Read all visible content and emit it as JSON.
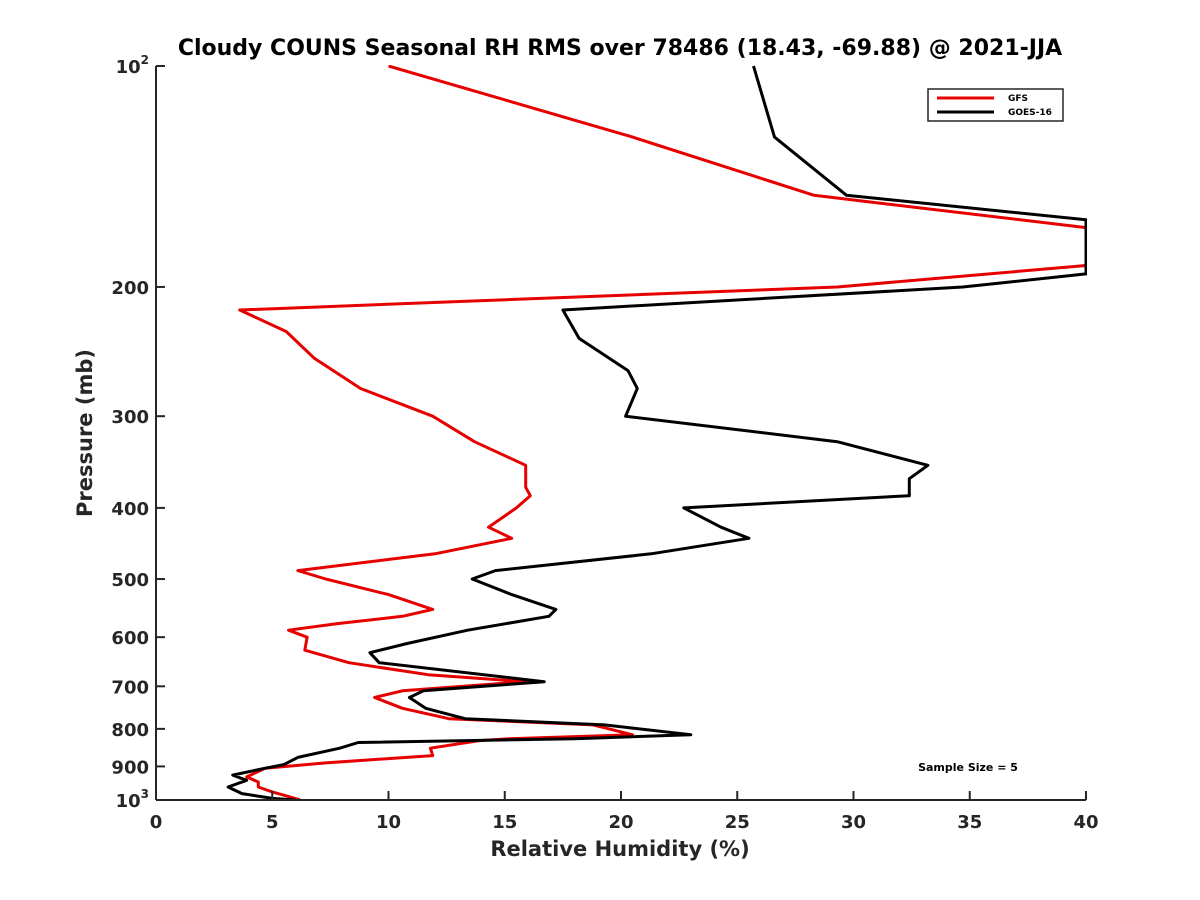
{
  "chart_data": {
    "type": "line",
    "title": "Cloudy COUNS Seasonal RH RMS over 78486 (18.43, -69.88) @ 2021-JJA",
    "xlabel": "Relative Humidity (%)",
    "ylabel": "Pressure (mb)",
    "xlim": [
      0,
      40
    ],
    "ylim": [
      100,
      1000
    ],
    "y_scale": "log",
    "y_reversed": true,
    "x_ticks": [
      0,
      5,
      10,
      15,
      20,
      25,
      30,
      35,
      40
    ],
    "x_tick_labels": [
      "0",
      "5",
      "10",
      "15",
      "20",
      "25",
      "30",
      "35",
      "40"
    ],
    "y_ticks": [
      {
        "value": 100,
        "base": "10",
        "exp": "2"
      },
      {
        "value": 200,
        "label": "200"
      },
      {
        "value": 300,
        "label": "300"
      },
      {
        "value": 400,
        "label": "400"
      },
      {
        "value": 500,
        "label": "500"
      },
      {
        "value": 600,
        "label": "600"
      },
      {
        "value": 700,
        "label": "700"
      },
      {
        "value": 800,
        "label": "800"
      },
      {
        "value": 900,
        "label": "900"
      },
      {
        "value": 1000,
        "base": "10",
        "exp": "3"
      }
    ],
    "legend": {
      "position": "top-right"
    },
    "annotation": "Sample Size = 5",
    "series": [
      {
        "name": "GFS",
        "color": "#e60000",
        "points": [
          [
            10.0,
            100
          ],
          [
            20.5,
            125
          ],
          [
            28.3,
            150
          ],
          [
            40,
            166
          ],
          [
            40,
            187
          ],
          [
            29.3,
            200
          ],
          [
            3.6,
            215
          ],
          [
            5.6,
            230
          ],
          [
            6.8,
            250
          ],
          [
            8.8,
            275
          ],
          [
            11.9,
            300
          ],
          [
            13.7,
            325
          ],
          [
            15.9,
            350
          ],
          [
            15.9,
            375
          ],
          [
            16.1,
            385
          ],
          [
            15.5,
            400
          ],
          [
            14.3,
            425
          ],
          [
            15.3,
            440
          ],
          [
            12.0,
            462
          ],
          [
            6.1,
            487
          ],
          [
            7.3,
            500
          ],
          [
            10.0,
            525
          ],
          [
            11.9,
            550
          ],
          [
            10.6,
            562
          ],
          [
            7.8,
            575
          ],
          [
            5.7,
            587
          ],
          [
            6.5,
            600
          ],
          [
            6.4,
            625
          ],
          [
            8.3,
            650
          ],
          [
            11.7,
            675
          ],
          [
            15.9,
            690
          ],
          [
            10.6,
            710
          ],
          [
            9.4,
            725
          ],
          [
            10.6,
            750
          ],
          [
            12.6,
            775
          ],
          [
            18.8,
            790
          ],
          [
            20.5,
            815
          ],
          [
            15.2,
            825
          ],
          [
            13.9,
            830
          ],
          [
            11.8,
            850
          ],
          [
            11.9,
            870
          ],
          [
            7.3,
            890
          ],
          [
            4.7,
            905
          ],
          [
            3.9,
            930
          ],
          [
            4.4,
            945
          ],
          [
            4.4,
            960
          ],
          [
            5.0,
            975
          ],
          [
            5.5,
            985
          ],
          [
            6.2,
            1000
          ]
        ]
      },
      {
        "name": "GOES-16",
        "color": "#000000",
        "points": [
          [
            25.7,
            100
          ],
          [
            26.6,
            125
          ],
          [
            29.7,
            150
          ],
          [
            40,
            162
          ],
          [
            40,
            192
          ],
          [
            34.7,
            200
          ],
          [
            17.5,
            215
          ],
          [
            18.2,
            235
          ],
          [
            20.3,
            260
          ],
          [
            20.7,
            275
          ],
          [
            20.2,
            300
          ],
          [
            29.3,
            325
          ],
          [
            33.2,
            350
          ],
          [
            32.4,
            365
          ],
          [
            32.4,
            385
          ],
          [
            22.7,
            400
          ],
          [
            24.3,
            425
          ],
          [
            25.5,
            440
          ],
          [
            21.3,
            462
          ],
          [
            14.6,
            487
          ],
          [
            13.6,
            500
          ],
          [
            15.3,
            525
          ],
          [
            17.2,
            550
          ],
          [
            16.9,
            562
          ],
          [
            13.4,
            587
          ],
          [
            10.8,
            612
          ],
          [
            9.2,
            630
          ],
          [
            9.6,
            650
          ],
          [
            16.7,
            690
          ],
          [
            11.5,
            710
          ],
          [
            10.9,
            725
          ],
          [
            11.6,
            750
          ],
          [
            13.3,
            775
          ],
          [
            19.3,
            790
          ],
          [
            23.0,
            815
          ],
          [
            18.0,
            825
          ],
          [
            8.7,
            835
          ],
          [
            7.9,
            850
          ],
          [
            6.1,
            875
          ],
          [
            5.5,
            895
          ],
          [
            4.7,
            905
          ],
          [
            3.3,
            925
          ],
          [
            3.9,
            940
          ],
          [
            3.1,
            960
          ],
          [
            3.7,
            980
          ],
          [
            5.0,
            995
          ],
          [
            6.0,
            1000
          ]
        ]
      }
    ]
  }
}
